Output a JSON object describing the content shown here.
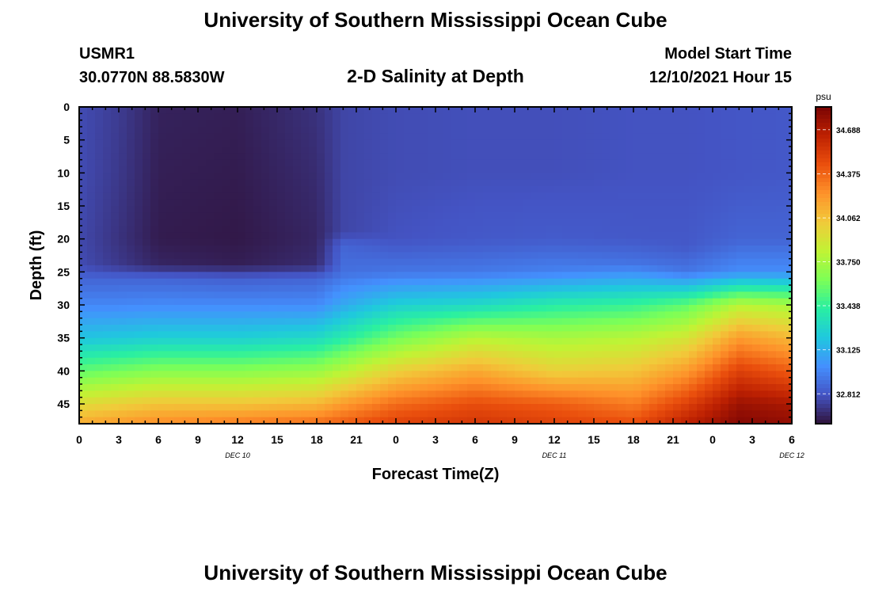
{
  "header": {
    "title": "University of Southern Mississippi Ocean Cube",
    "station_id": "USMR1",
    "station_location": "30.0770N  88.5830W",
    "subtitle": "2-D Salinity at Depth",
    "model_start_label": "Model Start Time",
    "model_start_value": "12/10/2021 Hour 15"
  },
  "footer": {
    "title": "University of Southern Mississippi Ocean Cube"
  },
  "chart_data": {
    "type": "heatmap",
    "title": "2-D Salinity at Depth",
    "xlabel": "Forecast Time(Z)",
    "ylabel": "Depth (ft)",
    "x_ticks": [
      "0",
      "3",
      "6",
      "9",
      "12",
      "15",
      "18",
      "21",
      "0",
      "3",
      "6",
      "9",
      "12",
      "15",
      "18",
      "21",
      "0",
      "3",
      "6"
    ],
    "date_labels": [
      {
        "label": "DEC 10",
        "hour": 12
      },
      {
        "label": "DEC 11",
        "hour": 36
      },
      {
        "label": "DEC 12",
        "hour": 54
      }
    ],
    "xlim_hours": [
      0,
      54
    ],
    "y_ticks": [
      0,
      5,
      10,
      15,
      20,
      25,
      30,
      35,
      40,
      45
    ],
    "ylim": [
      0,
      48
    ],
    "colorbar": {
      "unit": "psu",
      "ticks": [
        34.688,
        34.375,
        34.062,
        33.75,
        33.438,
        33.125,
        32.812
      ],
      "range": [
        32.6,
        34.85
      ],
      "colors": [
        "#30123b",
        "#4454c4",
        "#4490fe",
        "#1fc8de",
        "#29efa2",
        "#7dff56",
        "#c1f334",
        "#f1ca3a",
        "#fe922a",
        "#ea4f0d",
        "#be2102",
        "#7a0403"
      ]
    },
    "salinity_profiles": [
      {
        "hour": 0,
        "depths": [
          0,
          10,
          20,
          24,
          26,
          30,
          35,
          40,
          45,
          48
        ],
        "values": [
          32.78,
          32.78,
          32.77,
          32.78,
          32.86,
          32.98,
          33.2,
          33.55,
          33.95,
          34.15
        ]
      },
      {
        "hour": 3,
        "depths": [
          0,
          10,
          20,
          24,
          26,
          30,
          35,
          40,
          45,
          48
        ],
        "values": [
          32.73,
          32.72,
          32.7,
          32.72,
          32.86,
          32.98,
          33.22,
          33.6,
          34.0,
          34.2
        ]
      },
      {
        "hour": 6,
        "depths": [
          0,
          10,
          20,
          24,
          26,
          30,
          35,
          40,
          45,
          48
        ],
        "values": [
          32.65,
          32.64,
          32.63,
          32.66,
          32.86,
          32.99,
          33.25,
          33.65,
          34.05,
          34.25
        ]
      },
      {
        "hour": 12,
        "depths": [
          0,
          10,
          20,
          24,
          26,
          30,
          35,
          40,
          45,
          48
        ],
        "values": [
          32.64,
          32.63,
          32.62,
          32.64,
          32.84,
          32.99,
          33.25,
          33.65,
          34.05,
          34.3
        ]
      },
      {
        "hour": 18,
        "depths": [
          0,
          10,
          20,
          24,
          26,
          30,
          35,
          40,
          45,
          48
        ],
        "values": [
          32.7,
          32.68,
          32.66,
          32.68,
          32.86,
          32.99,
          33.3,
          33.7,
          34.1,
          34.35
        ]
      },
      {
        "hour": 20,
        "depths": [
          0,
          10,
          19,
          21,
          25,
          30,
          35,
          40,
          45,
          48
        ],
        "values": [
          32.76,
          32.76,
          32.76,
          32.86,
          32.9,
          33.1,
          33.4,
          33.8,
          34.2,
          34.4
        ]
      },
      {
        "hour": 24,
        "depths": [
          0,
          10,
          20,
          22,
          25,
          30,
          35,
          40,
          45,
          48
        ],
        "values": [
          32.78,
          32.78,
          32.8,
          32.85,
          32.92,
          33.25,
          33.6,
          34.0,
          34.35,
          34.5
        ]
      },
      {
        "hour": 30,
        "depths": [
          0,
          10,
          20,
          25,
          30,
          35,
          40,
          45,
          48
        ],
        "values": [
          32.79,
          32.79,
          32.82,
          32.93,
          33.3,
          33.8,
          34.15,
          34.45,
          34.55
        ]
      },
      {
        "hour": 36,
        "depths": [
          0,
          10,
          20,
          25,
          30,
          35,
          40,
          45,
          48
        ],
        "values": [
          32.79,
          32.79,
          32.83,
          32.96,
          33.4,
          33.75,
          34.0,
          34.4,
          34.5
        ]
      },
      {
        "hour": 42,
        "depths": [
          0,
          10,
          20,
          24,
          30,
          35,
          40,
          45,
          48
        ],
        "values": [
          32.8,
          32.8,
          32.82,
          32.92,
          33.45,
          33.8,
          34.05,
          34.3,
          34.45
        ]
      },
      {
        "hour": 46,
        "depths": [
          0,
          10,
          21,
          25,
          30,
          35,
          40,
          45,
          48
        ],
        "values": [
          32.8,
          32.8,
          32.82,
          32.92,
          33.55,
          33.9,
          34.2,
          34.5,
          34.65
        ]
      },
      {
        "hour": 50,
        "depths": [
          0,
          10,
          20,
          25,
          30,
          35,
          40,
          45,
          48
        ],
        "values": [
          32.81,
          32.81,
          32.86,
          33.0,
          33.8,
          34.2,
          34.5,
          34.75,
          34.82
        ]
      },
      {
        "hour": 54,
        "depths": [
          0,
          10,
          20,
          25,
          30,
          35,
          40,
          45,
          48
        ],
        "values": [
          32.82,
          32.82,
          32.86,
          33.0,
          33.75,
          34.1,
          34.4,
          34.7,
          34.78
        ]
      }
    ]
  }
}
